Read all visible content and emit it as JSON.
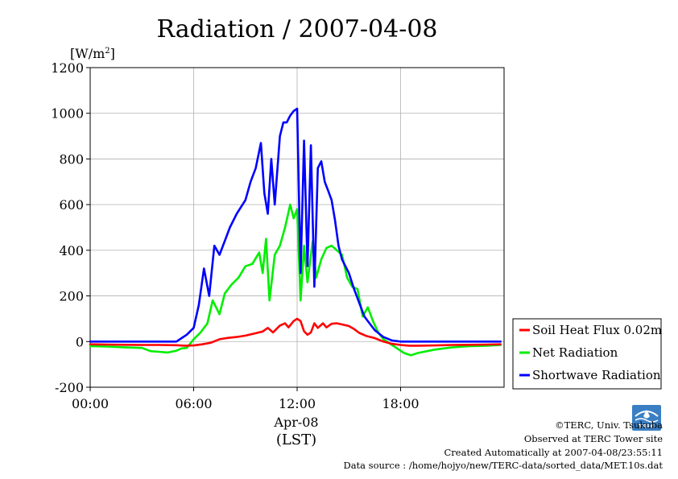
{
  "chart_data": {
    "type": "line",
    "title": "Radiation / 2007-04-08",
    "ylabel_unit": "[W/m2]",
    "ylim": [
      -200,
      1200
    ],
    "yticks": [
      -200,
      0,
      200,
      400,
      600,
      800,
      1000,
      1200
    ],
    "xlim": [
      0,
      24
    ],
    "xticks": [
      0,
      6,
      12,
      18
    ],
    "xtick_labels": [
      "00:00",
      "06:00",
      "12:00",
      "18:00"
    ],
    "xlabel_date": "Apr-08",
    "xlabel_tz": "(LST)",
    "grid": true,
    "legend_position": "right",
    "series": [
      {
        "name": "Soil Heat Flux 0.02m",
        "color": "#ff0000",
        "x": [
          0,
          1,
          2,
          3,
          4,
          5,
          5.5,
          6,
          6.5,
          7,
          7.5,
          8,
          8.5,
          9,
          9.5,
          10,
          10.3,
          10.6,
          11,
          11.3,
          11.5,
          11.8,
          12,
          12.2,
          12.4,
          12.6,
          12.8,
          13,
          13.2,
          13.5,
          13.7,
          14,
          14.3,
          14.6,
          15,
          15.3,
          15.6,
          16,
          16.5,
          17,
          17.5,
          18,
          18.5,
          19,
          20,
          21,
          22,
          23,
          23.8
        ],
        "y": [
          -12,
          -13,
          -14,
          -15,
          -15,
          -16,
          -18,
          -17,
          -12,
          -5,
          10,
          16,
          20,
          26,
          35,
          44,
          60,
          40,
          70,
          80,
          62,
          90,
          100,
          90,
          45,
          30,
          40,
          80,
          60,
          80,
          62,
          78,
          80,
          75,
          68,
          55,
          38,
          25,
          15,
          0,
          -10,
          -15,
          -18,
          -18,
          -17,
          -15,
          -14,
          -13,
          -12
        ]
      },
      {
        "name": "Net Radiation",
        "color": "#00ee00",
        "x": [
          0,
          1,
          2,
          3,
          3.5,
          4,
          4.5,
          5,
          5.3,
          5.6,
          6,
          6.4,
          6.8,
          7.1,
          7.5,
          7.8,
          8.2,
          8.6,
          9,
          9.4,
          9.8,
          10,
          10.2,
          10.4,
          10.7,
          11,
          11.3,
          11.6,
          11.8,
          12,
          12.2,
          12.4,
          12.6,
          12.9,
          13.1,
          13.4,
          13.7,
          14,
          14.3,
          14.6,
          14.9,
          15.2,
          15.5,
          15.8,
          16.1,
          16.4,
          16.7,
          17,
          17.4,
          17.8,
          18.2,
          18.6,
          19,
          20,
          21,
          22,
          23,
          23.8
        ],
        "y": [
          -20,
          -22,
          -25,
          -28,
          -42,
          -45,
          -48,
          -40,
          -30,
          -28,
          10,
          40,
          80,
          180,
          120,
          210,
          250,
          280,
          330,
          340,
          390,
          300,
          450,
          180,
          380,
          420,
          500,
          600,
          540,
          580,
          180,
          420,
          260,
          440,
          280,
          360,
          410,
          420,
          400,
          380,
          280,
          240,
          230,
          110,
          150,
          90,
          40,
          10,
          -10,
          -30,
          -50,
          -60,
          -50,
          -35,
          -25,
          -20,
          -18,
          -15
        ]
      },
      {
        "name": "Shortwave Radiation",
        "color": "#0000ff",
        "x": [
          0,
          1,
          2,
          3,
          4,
          5,
          5.3,
          5.6,
          6,
          6.3,
          6.6,
          6.9,
          7.2,
          7.5,
          7.8,
          8.1,
          8.5,
          9,
          9.3,
          9.6,
          9.9,
          10.1,
          10.3,
          10.5,
          10.7,
          11,
          11.2,
          11.4,
          11.6,
          11.8,
          12,
          12.2,
          12.4,
          12.6,
          12.8,
          13,
          13.2,
          13.4,
          13.6,
          13.8,
          14,
          14.2,
          14.4,
          14.6,
          14.8,
          15,
          15.3,
          15.6,
          15.9,
          16.2,
          16.5,
          17,
          17.5,
          18,
          18.5,
          19,
          20,
          21,
          22,
          23,
          23.8
        ],
        "y": [
          0,
          0,
          0,
          0,
          0,
          0,
          15,
          30,
          60,
          160,
          320,
          200,
          420,
          380,
          440,
          500,
          560,
          620,
          700,
          760,
          870,
          650,
          560,
          800,
          600,
          900,
          960,
          960,
          990,
          1010,
          1020,
          300,
          880,
          330,
          860,
          240,
          760,
          790,
          700,
          660,
          620,
          530,
          420,
          360,
          330,
          300,
          230,
          170,
          110,
          80,
          50,
          20,
          5,
          0,
          0,
          0,
          0,
          0,
          0,
          0,
          0
        ]
      }
    ]
  },
  "footer": {
    "line1": "©TERC, Univ. Tsukuba",
    "line2": "Observed at TERC Tower site",
    "line3": "Created Automatically at 2007-04-08/23:55:11",
    "line4": "Data source : /home/hojyo/new/TERC-data/sorted_data/MET.10s.dat"
  },
  "logo_text": "TERC"
}
